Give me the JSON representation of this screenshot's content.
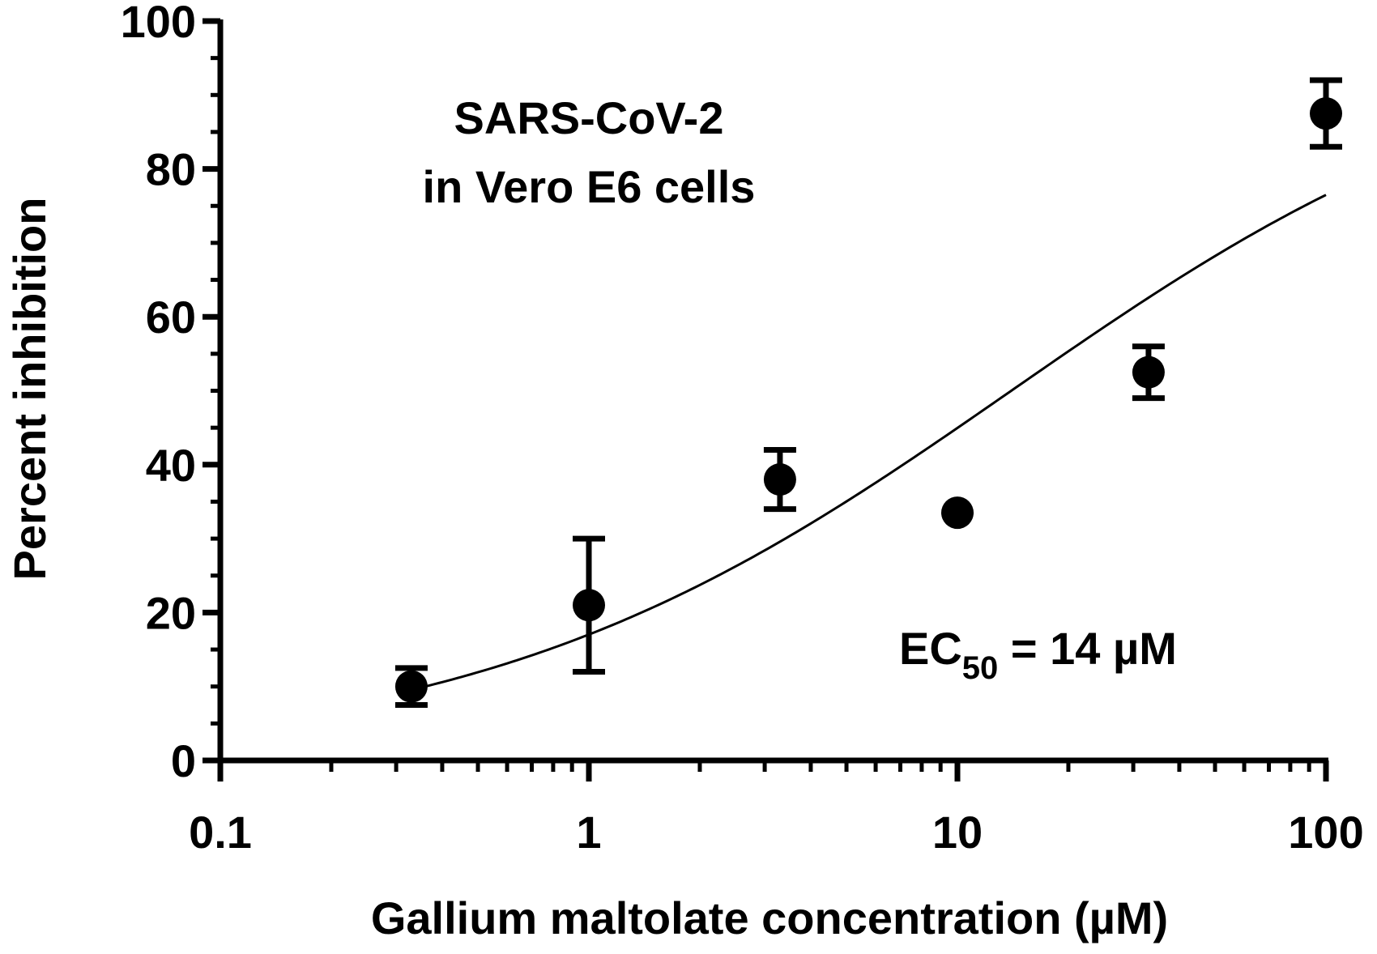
{
  "chart_data": {
    "type": "scatter",
    "x_scale": "log",
    "xlabel": "Gallium maltolate concentration (µM)",
    "ylabel": "Percent  inhibition",
    "xlim": [
      0.1,
      100
    ],
    "ylim": [
      0,
      100
    ],
    "x_ticks": [
      {
        "value": 0.1,
        "label": "0.1"
      },
      {
        "value": 1,
        "label": "1"
      },
      {
        "value": 10,
        "label": "10"
      },
      {
        "value": 100,
        "label": "100"
      }
    ],
    "y_ticks": [
      {
        "value": 0,
        "label": "0"
      },
      {
        "value": 20,
        "label": "20"
      },
      {
        "value": 40,
        "label": "40"
      },
      {
        "value": 60,
        "label": "60"
      },
      {
        "value": 80,
        "label": "80"
      },
      {
        "value": 100,
        "label": "100"
      }
    ],
    "y_minor_step": 5,
    "points": [
      {
        "x": 0.33,
        "y": 10,
        "err": 2.5
      },
      {
        "x": 1,
        "y": 21,
        "err": 9
      },
      {
        "x": 3.3,
        "y": 38,
        "err": 4
      },
      {
        "x": 10,
        "y": 33.5,
        "err": 0
      },
      {
        "x": 33,
        "y": 52.5,
        "err": 3.5
      },
      {
        "x": 100,
        "y": 87.5,
        "err": 4.5
      }
    ],
    "fit_curve": {
      "x_start": 0.33,
      "x_end": 100,
      "ec50": 14,
      "hill": 0.6,
      "bottom": 0,
      "top": 100
    },
    "annotations": {
      "virus_line1": "SARS-CoV-2",
      "virus_line2": "in Vero E6 cells",
      "ec50_prefix": "EC",
      "ec50_sub": "50",
      "ec50_value": " = 14 µM"
    },
    "colors": {
      "marker": "#000000",
      "line": "#000000",
      "axis": "#000000"
    }
  }
}
